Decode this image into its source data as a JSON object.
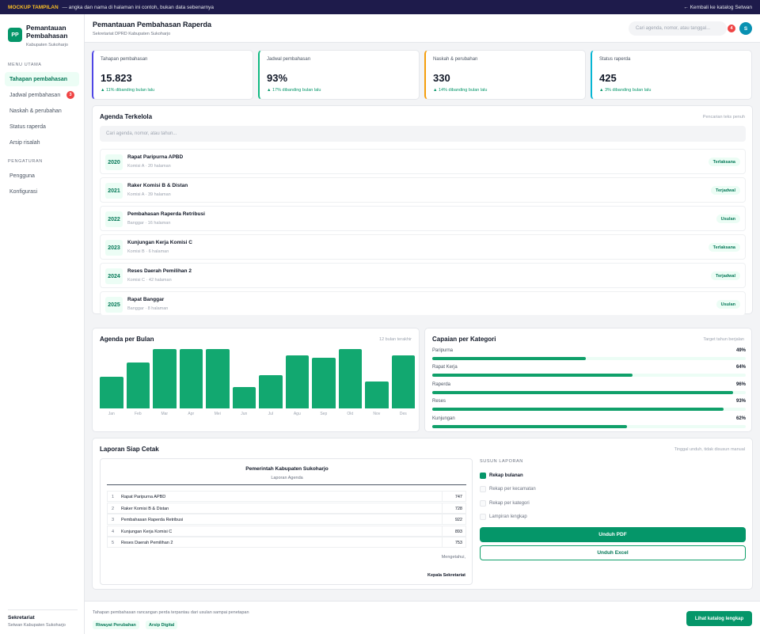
{
  "topbar": {
    "tag": "MOCKUP TAMPILAN",
    "notice": "— angka dan nama di halaman ini contoh, bukan data sebenarnya",
    "back_link": "← Kembali ke katalog Setwan"
  },
  "sidebar": {
    "logo_text": "PP",
    "title_line1": "Pemantauan",
    "title_line2": "Pembahasan",
    "subtitle": "Kabupaten Sukoharjo",
    "section_main": "MENU UTAMA",
    "main_items": [
      {
        "label": "Tahapan pembahasan"
      },
      {
        "label": "Jadwal pembahasan",
        "badge": "3"
      },
      {
        "label": "Naskah & perubahan"
      },
      {
        "label": "Status raperda"
      },
      {
        "label": "Arsip risalah"
      }
    ],
    "section_settings": "PENGATURAN",
    "settings_items": [
      {
        "label": "Pengguna"
      },
      {
        "label": "Konfigurasi"
      }
    ],
    "footer_title": "Sekretariat",
    "footer_sub": "Setwan Kabupaten Sukoharjo"
  },
  "header": {
    "title": "Pemantauan Pembahasan Raperda",
    "subtitle": "Sekretariat DPRD Kabupaten Sukoharjo",
    "search_placeholder": "Cari agenda, nomor, atau tanggal...",
    "notif_count": "4",
    "avatar_initial": "S"
  },
  "stats": [
    {
      "label": "Tahapan pembahasan",
      "value": "15.823",
      "change": "▲ 11% dibanding bulan lalu",
      "accent": "#4f46e5"
    },
    {
      "label": "Jadwal pembahasan",
      "value": "93%",
      "change": "▲ 17% dibanding bulan lalu",
      "accent": "#10b981"
    },
    {
      "label": "Naskah & perubahan",
      "value": "330",
      "change": "▲ 14% dibanding bulan lalu",
      "accent": "#f59e0b"
    },
    {
      "label": "Status raperda",
      "value": "425",
      "change": "▲ 3% dibanding bulan lalu",
      "accent": "#06b6d4"
    }
  ],
  "agenda": {
    "title": "Agenda Terkelola",
    "note": "Pencarian teks penuh",
    "search_placeholder": "Cari agenda, nomor, atau tahun...",
    "rows": [
      {
        "year": "2020",
        "name": "Rapat Paripurna APBD",
        "meta": "Komisi A · 20 halaman",
        "status": "Terlaksana"
      },
      {
        "year": "2021",
        "name": "Raker Komisi B & Distan",
        "meta": "Komisi A · 39 halaman",
        "status": "Terjadwal"
      },
      {
        "year": "2022",
        "name": "Pembahasan Raperda Retribusi",
        "meta": "Banggar · 16 halaman",
        "status": "Usulan"
      },
      {
        "year": "2023",
        "name": "Kunjungan Kerja Komisi C",
        "meta": "Komisi B · 6 halaman",
        "status": "Terlaksana"
      },
      {
        "year": "2024",
        "name": "Reses Daerah Pemilihan 2",
        "meta": "Komisi C · 42 halaman",
        "status": "Terjadwal"
      },
      {
        "year": "2025",
        "name": "Rapat Banggar",
        "meta": "Banggar · 8 halaman",
        "status": "Usulan"
      }
    ]
  },
  "monthly": {
    "title": "Agenda per Bulan",
    "note": "12 bulan terakhir"
  },
  "category": {
    "title": "Capaian per Kategori",
    "note": "Target tahun berjalan",
    "items": [
      {
        "name": "Paripurna",
        "pct_label": "49%",
        "pct": 49
      },
      {
        "name": "Rapat Kerja",
        "pct_label": "64%",
        "pct": 64
      },
      {
        "name": "Raperda",
        "pct_label": "96%",
        "pct": 96
      },
      {
        "name": "Reses",
        "pct_label": "93%",
        "pct": 93
      },
      {
        "name": "Kunjungan",
        "pct_label": "62%",
        "pct": 62
      }
    ]
  },
  "report": {
    "title": "Laporan Siap Cetak",
    "note": "Tinggal unduh, tidak disusun manual",
    "doc_title": "Pemerintah Kabupaten Sukoharjo",
    "doc_subtitle": "Laporan Agenda",
    "rows": [
      {
        "no": "1",
        "label": "Rapat Paripurna APBD",
        "value": "747"
      },
      {
        "no": "2",
        "label": "Raker Komisi B & Distan",
        "value": "728"
      },
      {
        "no": "3",
        "label": "Pembahasan Raperda Retribusi",
        "value": "922"
      },
      {
        "no": "4",
        "label": "Kunjungan Kerja Komisi C",
        "value": "893"
      },
      {
        "no": "5",
        "label": "Reses Daerah Pemilihan 2",
        "value": "753"
      }
    ],
    "acknowledge": "Mengetahui,",
    "signatory": "Kepala Sekretariat",
    "compose_heading": "SUSUN LAPORAN",
    "options": [
      {
        "label": "Rekap bulanan",
        "checked": true
      },
      {
        "label": "Rekap per kecamatan",
        "checked": false
      },
      {
        "label": "Rekap per kategori",
        "checked": false
      },
      {
        "label": "Lampiran lengkap",
        "checked": false
      }
    ],
    "pdf_button": "Unduh PDF",
    "excel_button": "Unduh Excel"
  },
  "footer": {
    "text": "Tahapan pembahasan rancangan perda terpantau dari usulan sampai penetapan",
    "chip1": "Riwayat Perubahan",
    "chip2": "Arsip Digital",
    "button": "Lihat katalog lengkap"
  },
  "chart_data": {
    "type": "bar",
    "title": "Agenda per Bulan",
    "categories": [
      "Jan",
      "Feb",
      "Mar",
      "Apr",
      "Mei",
      "Jun",
      "Jul",
      "Agu",
      "Sep",
      "Okt",
      "Nov",
      "Des"
    ],
    "values": [
      53,
      78,
      100,
      100,
      100,
      36,
      56,
      90,
      86,
      100,
      46,
      90
    ],
    "ylim": [
      0,
      100
    ],
    "grid": false,
    "colors": {
      "bar": "#12a870"
    }
  }
}
